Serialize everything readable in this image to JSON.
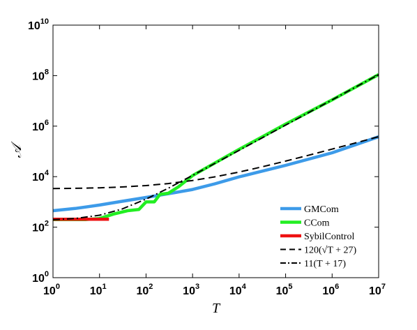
{
  "chart_data": {
    "type": "line",
    "xscale": "log",
    "yscale": "log",
    "xlim": [
      1,
      10000000
    ],
    "ylim": [
      1,
      10000000000
    ],
    "xlabel": "T",
    "ylabel": "𝒜",
    "x_ticks": [
      {
        "base": "10",
        "exp": "0"
      },
      {
        "base": "10",
        "exp": "1"
      },
      {
        "base": "10",
        "exp": "2"
      },
      {
        "base": "10",
        "exp": "3"
      },
      {
        "base": "10",
        "exp": "4"
      },
      {
        "base": "10",
        "exp": "5"
      },
      {
        "base": "10",
        "exp": "6"
      },
      {
        "base": "10",
        "exp": "7"
      }
    ],
    "y_ticks": [
      {
        "base": "10",
        "exp": "0"
      },
      {
        "base": "10",
        "exp": "2"
      },
      {
        "base": "10",
        "exp": "4"
      },
      {
        "base": "10",
        "exp": "6"
      },
      {
        "base": "10",
        "exp": "8"
      },
      {
        "base": "10",
        "exp": "10"
      }
    ],
    "grid": false,
    "legend_position": "bottom-right",
    "series": [
      {
        "name": "GMCom",
        "color": "#3d9be9",
        "style": "solid",
        "x": [
          1,
          3,
          10,
          30,
          100,
          300,
          1000,
          3000,
          10000,
          100000,
          1000000,
          10000000
        ],
        "y": [
          450,
          550,
          750,
          1050,
          1500,
          2100,
          3100,
          5200,
          9800,
          28000,
          88000,
          380000
        ]
      },
      {
        "name": "CCom",
        "color": "#22ee22",
        "style": "solid",
        "x": [
          1,
          5,
          10,
          20,
          40,
          70,
          100,
          150,
          200,
          300,
          500,
          1000,
          10000,
          100000,
          1000000,
          10000000
        ],
        "y": [
          200,
          200,
          220,
          330,
          450,
          500,
          1000,
          1000,
          2000,
          2200,
          4000,
          11000,
          120000,
          1200000,
          11000000,
          110000000
        ]
      },
      {
        "name": "SybilControl",
        "color": "#ee1111",
        "style": "solid",
        "x": [
          1,
          16
        ],
        "y": [
          205,
          205
        ]
      },
      {
        "name": "120(√T + 27)",
        "color": "#000000",
        "style": "dashed",
        "x": [
          1,
          3,
          10,
          30,
          100,
          300,
          1000,
          3000,
          10000,
          30000,
          100000,
          300000,
          1000000,
          3000000,
          10000000
        ],
        "y": [
          3360,
          3448,
          3619,
          3897,
          4440,
          5318,
          7035,
          9813,
          15240,
          24025,
          41187,
          68966,
          123240,
          211081,
          382707
        ]
      },
      {
        "name": "11(T + 17)",
        "color": "#000000",
        "style": "dashdot",
        "x": [
          1,
          3,
          10,
          30,
          100,
          300,
          1000,
          3000,
          10000,
          100000,
          1000000,
          10000000
        ],
        "y": [
          198,
          220,
          297,
          517,
          1287,
          3487,
          11187,
          33187,
          110187,
          1100187,
          11000187,
          110000187
        ]
      }
    ]
  }
}
